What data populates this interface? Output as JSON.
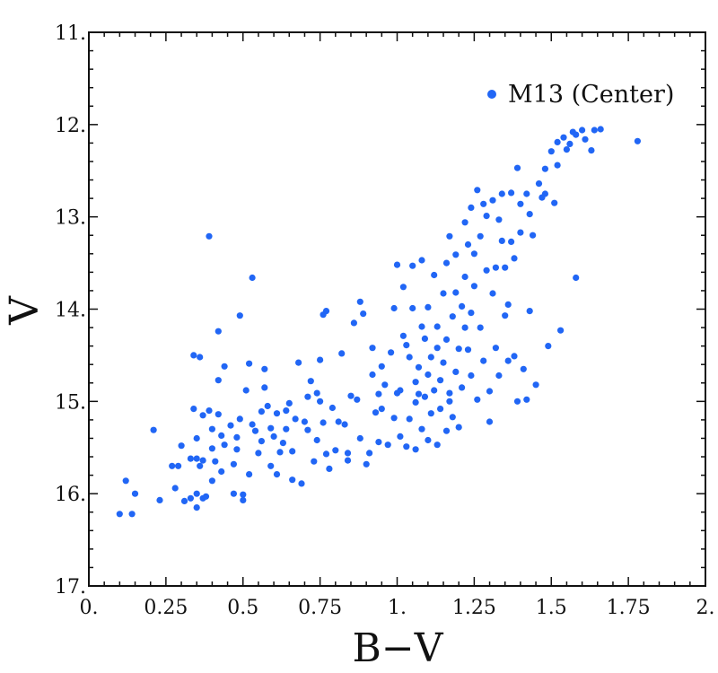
{
  "chart_data": {
    "type": "scatter",
    "xlabel": "B−V",
    "ylabel": "V",
    "xlim": [
      0,
      2
    ],
    "ylim": [
      11,
      17
    ],
    "y_inverted": true,
    "grid": false,
    "legend_position": "top-right",
    "x_ticks": [
      0,
      0.25,
      0.5,
      0.75,
      1,
      1.25,
      1.5,
      1.75,
      2
    ],
    "x_tick_labels": [
      "0.",
      "0.25",
      "0.5",
      "0.75",
      "1.",
      "1.25",
      "1.5",
      "1.75",
      "2."
    ],
    "y_ticks": [
      11,
      12,
      13,
      14,
      15,
      16,
      17
    ],
    "y_tick_labels": [
      "11.",
      "12.",
      "13.",
      "14.",
      "15.",
      "16.",
      "17."
    ],
    "series": [
      {
        "name": "M13 (Center)",
        "color": "#2166f5",
        "points": [
          [
            0.1,
            16.22
          ],
          [
            0.12,
            15.86
          ],
          [
            0.14,
            16.22
          ],
          [
            0.15,
            16.0
          ],
          [
            0.21,
            15.31
          ],
          [
            0.23,
            16.07
          ],
          [
            0.27,
            15.7
          ],
          [
            0.28,
            15.94
          ],
          [
            0.29,
            15.7
          ],
          [
            0.3,
            15.48
          ],
          [
            0.31,
            16.08
          ],
          [
            0.33,
            15.62
          ],
          [
            0.33,
            16.05
          ],
          [
            0.34,
            15.08
          ],
          [
            0.34,
            14.5
          ],
          [
            0.35,
            15.62
          ],
          [
            0.35,
            15.4
          ],
          [
            0.35,
            16.0
          ],
          [
            0.35,
            16.15
          ],
          [
            0.36,
            14.52
          ],
          [
            0.36,
            15.7
          ],
          [
            0.37,
            15.15
          ],
          [
            0.37,
            15.64
          ],
          [
            0.37,
            16.05
          ],
          [
            0.38,
            16.03
          ],
          [
            0.39,
            13.21
          ],
          [
            0.39,
            15.1
          ],
          [
            0.4,
            15.3
          ],
          [
            0.4,
            15.51
          ],
          [
            0.4,
            15.86
          ],
          [
            0.41,
            15.65
          ],
          [
            0.42,
            14.24
          ],
          [
            0.42,
            14.77
          ],
          [
            0.42,
            15.14
          ],
          [
            0.43,
            15.37
          ],
          [
            0.43,
            15.76
          ],
          [
            0.44,
            15.47
          ],
          [
            0.44,
            14.62
          ],
          [
            0.46,
            15.26
          ],
          [
            0.47,
            15.68
          ],
          [
            0.47,
            16.0
          ],
          [
            0.48,
            15.39
          ],
          [
            0.48,
            15.52
          ],
          [
            0.49,
            14.07
          ],
          [
            0.49,
            15.19
          ],
          [
            0.5,
            16.01
          ],
          [
            0.5,
            16.07
          ],
          [
            0.51,
            14.88
          ],
          [
            0.52,
            15.79
          ],
          [
            0.52,
            14.59
          ],
          [
            0.53,
            13.66
          ],
          [
            0.53,
            15.25
          ],
          [
            0.54,
            15.32
          ],
          [
            0.55,
            15.56
          ],
          [
            0.56,
            15.43
          ],
          [
            0.56,
            15.11
          ],
          [
            0.57,
            14.85
          ],
          [
            0.57,
            14.65
          ],
          [
            0.58,
            15.05
          ],
          [
            0.59,
            15.29
          ],
          [
            0.59,
            15.7
          ],
          [
            0.6,
            15.38
          ],
          [
            0.61,
            15.13
          ],
          [
            0.61,
            15.79
          ],
          [
            0.62,
            15.55
          ],
          [
            0.63,
            15.45
          ],
          [
            0.64,
            15.1
          ],
          [
            0.64,
            15.3
          ],
          [
            0.65,
            15.02
          ],
          [
            0.66,
            15.54
          ],
          [
            0.66,
            15.85
          ],
          [
            0.67,
            15.19
          ],
          [
            0.68,
            14.58
          ],
          [
            0.69,
            15.89
          ],
          [
            0.7,
            15.22
          ],
          [
            0.71,
            15.31
          ],
          [
            0.71,
            14.95
          ],
          [
            0.72,
            14.78
          ],
          [
            0.73,
            15.65
          ],
          [
            0.74,
            15.42
          ],
          [
            0.74,
            14.91
          ],
          [
            0.75,
            15.0
          ],
          [
            0.75,
            14.55
          ],
          [
            0.76,
            15.23
          ],
          [
            0.76,
            14.06
          ],
          [
            0.77,
            14.02
          ],
          [
            0.77,
            15.57
          ],
          [
            0.78,
            15.73
          ],
          [
            0.79,
            15.07
          ],
          [
            0.8,
            15.53
          ],
          [
            0.81,
            15.22
          ],
          [
            0.82,
            14.48
          ],
          [
            0.83,
            15.25
          ],
          [
            0.84,
            15.56
          ],
          [
            0.84,
            15.64
          ],
          [
            0.85,
            14.94
          ],
          [
            0.86,
            14.15
          ],
          [
            0.87,
            14.98
          ],
          [
            0.88,
            13.92
          ],
          [
            0.88,
            15.4
          ],
          [
            0.89,
            14.05
          ],
          [
            0.9,
            15.68
          ],
          [
            0.91,
            15.56
          ],
          [
            0.92,
            14.71
          ],
          [
            0.92,
            14.42
          ],
          [
            0.93,
            15.12
          ],
          [
            0.94,
            14.92
          ],
          [
            0.94,
            15.44
          ],
          [
            0.95,
            14.62
          ],
          [
            0.95,
            15.08
          ],
          [
            0.96,
            14.82
          ],
          [
            0.97,
            15.47
          ],
          [
            0.98,
            14.47
          ],
          [
            0.99,
            13.99
          ],
          [
            0.99,
            15.18
          ],
          [
            1.0,
            14.91
          ],
          [
            1.0,
            13.52
          ],
          [
            1.01,
            14.88
          ],
          [
            1.01,
            15.38
          ],
          [
            1.02,
            13.76
          ],
          [
            1.02,
            14.29
          ],
          [
            1.03,
            15.49
          ],
          [
            1.03,
            14.39
          ],
          [
            1.04,
            15.19
          ],
          [
            1.04,
            14.52
          ],
          [
            1.05,
            13.99
          ],
          [
            1.05,
            13.53
          ],
          [
            1.06,
            15.01
          ],
          [
            1.06,
            14.79
          ],
          [
            1.06,
            15.52
          ],
          [
            1.07,
            14.92
          ],
          [
            1.07,
            14.63
          ],
          [
            1.08,
            13.47
          ],
          [
            1.08,
            15.3
          ],
          [
            1.08,
            14.19
          ],
          [
            1.09,
            14.95
          ],
          [
            1.09,
            14.32
          ],
          [
            1.1,
            14.71
          ],
          [
            1.1,
            13.98
          ],
          [
            1.1,
            15.42
          ],
          [
            1.11,
            14.52
          ],
          [
            1.11,
            15.13
          ],
          [
            1.12,
            13.63
          ],
          [
            1.12,
            14.88
          ],
          [
            1.13,
            14.19
          ],
          [
            1.13,
            15.47
          ],
          [
            1.13,
            14.42
          ],
          [
            1.14,
            14.77
          ],
          [
            1.14,
            15.08
          ],
          [
            1.15,
            13.83
          ],
          [
            1.15,
            14.58
          ],
          [
            1.16,
            14.33
          ],
          [
            1.16,
            15.32
          ],
          [
            1.16,
            13.5
          ],
          [
            1.17,
            15.0
          ],
          [
            1.17,
            14.91
          ],
          [
            1.17,
            13.21
          ],
          [
            1.18,
            14.08
          ],
          [
            1.18,
            15.17
          ],
          [
            1.19,
            13.82
          ],
          [
            1.19,
            14.68
          ],
          [
            1.19,
            13.41
          ],
          [
            1.2,
            14.43
          ],
          [
            1.2,
            15.28
          ],
          [
            1.21,
            13.97
          ],
          [
            1.21,
            14.85
          ],
          [
            1.22,
            13.65
          ],
          [
            1.22,
            14.2
          ],
          [
            1.22,
            13.06
          ],
          [
            1.23,
            14.44
          ],
          [
            1.23,
            13.3
          ],
          [
            1.24,
            14.04
          ],
          [
            1.24,
            14.72
          ],
          [
            1.24,
            12.9
          ],
          [
            1.25,
            13.4
          ],
          [
            1.25,
            13.75
          ],
          [
            1.26,
            14.98
          ],
          [
            1.26,
            12.71
          ],
          [
            1.27,
            13.21
          ],
          [
            1.27,
            14.2
          ],
          [
            1.28,
            12.86
          ],
          [
            1.28,
            14.56
          ],
          [
            1.29,
            13.58
          ],
          [
            1.29,
            12.99
          ],
          [
            1.3,
            14.89
          ],
          [
            1.3,
            15.22
          ],
          [
            1.31,
            13.83
          ],
          [
            1.31,
            12.82
          ],
          [
            1.32,
            13.55
          ],
          [
            1.32,
            14.42
          ],
          [
            1.33,
            13.03
          ],
          [
            1.33,
            14.72
          ],
          [
            1.34,
            12.75
          ],
          [
            1.34,
            13.26
          ],
          [
            1.35,
            14.07
          ],
          [
            1.35,
            13.55
          ],
          [
            1.36,
            13.95
          ],
          [
            1.36,
            14.56
          ],
          [
            1.37,
            13.27
          ],
          [
            1.37,
            12.74
          ],
          [
            1.38,
            13.45
          ],
          [
            1.38,
            14.51
          ],
          [
            1.39,
            12.47
          ],
          [
            1.39,
            15.0
          ],
          [
            1.4,
            13.17
          ],
          [
            1.4,
            12.86
          ],
          [
            1.41,
            14.65
          ],
          [
            1.42,
            14.98
          ],
          [
            1.42,
            12.75
          ],
          [
            1.43,
            14.02
          ],
          [
            1.43,
            12.97
          ],
          [
            1.44,
            13.2
          ],
          [
            1.45,
            14.82
          ],
          [
            1.46,
            12.64
          ],
          [
            1.47,
            12.79
          ],
          [
            1.48,
            12.75
          ],
          [
            1.48,
            12.48
          ],
          [
            1.49,
            14.4
          ],
          [
            1.5,
            12.29
          ],
          [
            1.51,
            12.85
          ],
          [
            1.52,
            12.19
          ],
          [
            1.52,
            12.44
          ],
          [
            1.53,
            14.23
          ],
          [
            1.54,
            12.14
          ],
          [
            1.55,
            12.27
          ],
          [
            1.56,
            12.21
          ],
          [
            1.57,
            12.08
          ],
          [
            1.58,
            13.66
          ],
          [
            1.58,
            12.11
          ],
          [
            1.6,
            12.06
          ],
          [
            1.61,
            12.16
          ],
          [
            1.63,
            12.28
          ],
          [
            1.64,
            12.06
          ],
          [
            1.66,
            12.05
          ],
          [
            1.78,
            12.18
          ]
        ]
      }
    ]
  }
}
